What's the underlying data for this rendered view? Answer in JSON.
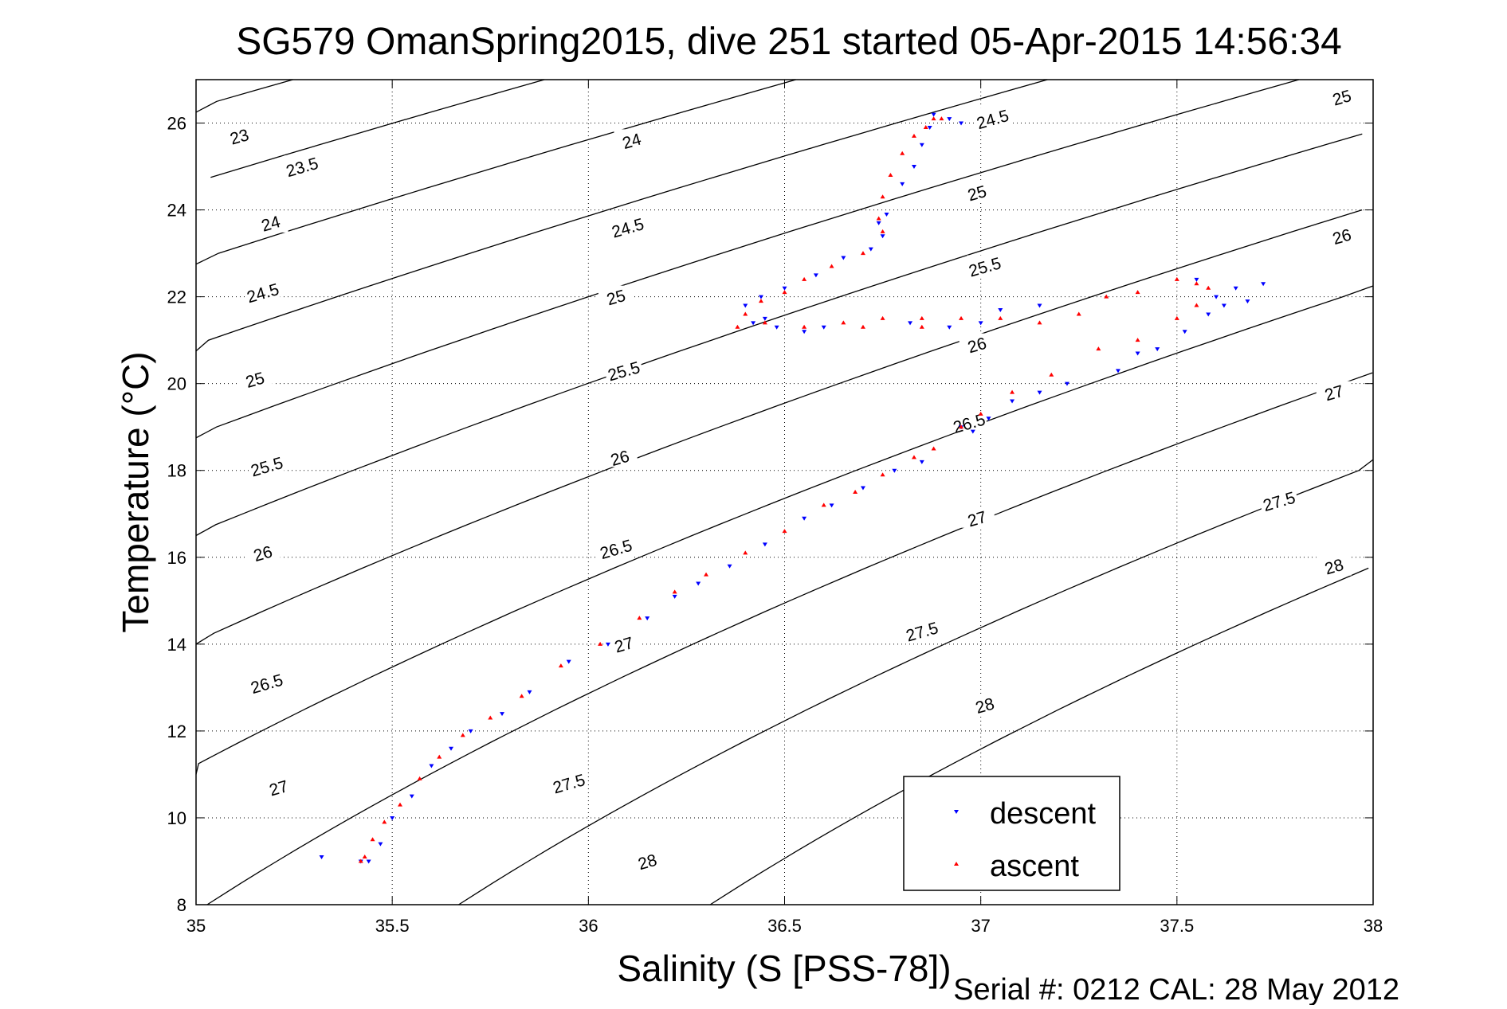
{
  "chart_data": {
    "type": "scatter",
    "title": "SG579 OmanSpring2015, dive 251 started 05-Apr-2015 14:56:34",
    "xlabel": "Salinity (S [PSS-78])",
    "ylabel": "Temperature (°C)",
    "footer": "Serial #: 0212  CAL: 28 May 2012",
    "xlim": [
      35,
      38
    ],
    "ylim": [
      8,
      27
    ],
    "xticks": [
      35,
      35.5,
      36,
      36.5,
      37,
      37.5,
      38
    ],
    "xtick_labels": [
      "35",
      "35.5",
      "36",
      "36.5",
      "37",
      "37.5",
      "38"
    ],
    "yticks": [
      8,
      10,
      12,
      14,
      16,
      18,
      20,
      22,
      24,
      26
    ],
    "ytick_labels": [
      "8",
      "10",
      "12",
      "14",
      "16",
      "18",
      "20",
      "22",
      "24",
      "26"
    ],
    "grid": "dotted",
    "legend_position": "bottom-right",
    "colors": {
      "descent": "#0000ff",
      "ascent": "#ff0000",
      "contour": "#000000"
    },
    "contours": {
      "note_type": "density (sigma-theta) isopycnals",
      "levels": [
        23,
        23.5,
        24,
        24.5,
        25,
        25.5,
        26,
        26.5,
        27,
        27.5,
        28
      ],
      "labels": [
        {
          "text": "23",
          "level": 23,
          "x": 35.11,
          "y": 25.7
        },
        {
          "text": "23.5",
          "level": 23.5,
          "x": 35.27,
          "y": 25.0
        },
        {
          "text": "24",
          "level": 24,
          "x": 35.19,
          "y": 23.7
        },
        {
          "text": "24.5",
          "level": 24.5,
          "x": 35.17,
          "y": 22.1
        },
        {
          "text": "25",
          "level": 25,
          "x": 35.15,
          "y": 20.1
        },
        {
          "text": "25.5",
          "level": 25.5,
          "x": 35.18,
          "y": 18.1
        },
        {
          "text": "26",
          "level": 26,
          "x": 35.17,
          "y": 16.1
        },
        {
          "text": "26.5",
          "level": 26.5,
          "x": 35.18,
          "y": 13.1
        },
        {
          "text": "27",
          "level": 27,
          "x": 35.21,
          "y": 10.7
        },
        {
          "text": "24",
          "level": 24,
          "x": 36.11,
          "y": 25.6
        },
        {
          "text": "24.5",
          "level": 24.5,
          "x": 36.1,
          "y": 23.6
        },
        {
          "text": "25",
          "level": 25,
          "x": 36.07,
          "y": 22.0
        },
        {
          "text": "25.5",
          "level": 25.5,
          "x": 36.09,
          "y": 20.3
        },
        {
          "text": "26",
          "level": 26,
          "x": 36.08,
          "y": 18.3
        },
        {
          "text": "26.5",
          "level": 26.5,
          "x": 36.07,
          "y": 16.2
        },
        {
          "text": "27",
          "level": 27,
          "x": 36.09,
          "y": 14.0
        },
        {
          "text": "27.5",
          "level": 27.5,
          "x": 35.95,
          "y": 10.8
        },
        {
          "text": "28",
          "level": 28,
          "x": 36.15,
          "y": 9.0
        },
        {
          "text": "24.5",
          "level": 24.5,
          "x": 37.03,
          "y": 26.1
        },
        {
          "text": "25",
          "level": 25,
          "x": 36.99,
          "y": 24.4
        },
        {
          "text": "25.5",
          "level": 25.5,
          "x": 37.01,
          "y": 22.7
        },
        {
          "text": "26",
          "level": 26,
          "x": 36.99,
          "y": 20.9
        },
        {
          "text": "26.5",
          "level": 26.5,
          "x": 36.97,
          "y": 19.1
        },
        {
          "text": "27",
          "level": 27,
          "x": 36.99,
          "y": 16.9
        },
        {
          "text": "27.5",
          "level": 27.5,
          "x": 36.85,
          "y": 14.3
        },
        {
          "text": "28",
          "level": 28,
          "x": 37.01,
          "y": 12.6
        },
        {
          "text": "25",
          "level": 25,
          "x": 37.92,
          "y": 26.6
        },
        {
          "text": "26",
          "level": 26,
          "x": 37.92,
          "y": 23.4
        },
        {
          "text": "27",
          "level": 27,
          "x": 37.9,
          "y": 19.8
        },
        {
          "text": "27.5",
          "level": 27.5,
          "x": 37.76,
          "y": 17.3
        },
        {
          "text": "28",
          "level": 28,
          "x": 37.9,
          "y": 15.8
        }
      ]
    },
    "series": [
      {
        "name": "descent",
        "marker": "down-triangle",
        "points": [
          [
            35.32,
            9.1
          ],
          [
            35.42,
            9.0
          ],
          [
            35.44,
            9.0
          ],
          [
            35.47,
            9.4
          ],
          [
            35.5,
            10.0
          ],
          [
            35.55,
            10.5
          ],
          [
            35.6,
            11.2
          ],
          [
            35.65,
            11.6
          ],
          [
            35.7,
            12.0
          ],
          [
            35.78,
            12.4
          ],
          [
            35.85,
            12.9
          ],
          [
            35.95,
            13.6
          ],
          [
            36.05,
            14.0
          ],
          [
            36.15,
            14.6
          ],
          [
            36.22,
            15.1
          ],
          [
            36.28,
            15.4
          ],
          [
            36.36,
            15.8
          ],
          [
            36.45,
            16.3
          ],
          [
            36.55,
            16.9
          ],
          [
            36.62,
            17.2
          ],
          [
            36.7,
            17.6
          ],
          [
            36.78,
            18.0
          ],
          [
            36.85,
            18.2
          ],
          [
            36.95,
            19.0
          ],
          [
            36.98,
            18.9
          ],
          [
            37.02,
            19.2
          ],
          [
            37.08,
            19.6
          ],
          [
            37.15,
            19.8
          ],
          [
            37.22,
            20.0
          ],
          [
            37.35,
            20.3
          ],
          [
            37.4,
            20.7
          ],
          [
            37.45,
            20.8
          ],
          [
            37.52,
            21.2
          ],
          [
            37.58,
            21.6
          ],
          [
            37.6,
            22.0
          ],
          [
            37.65,
            22.2
          ],
          [
            37.72,
            22.3
          ],
          [
            37.55,
            22.4
          ],
          [
            37.62,
            21.8
          ],
          [
            37.68,
            21.9
          ],
          [
            36.82,
            21.4
          ],
          [
            36.92,
            21.3
          ],
          [
            37.0,
            21.4
          ],
          [
            37.05,
            21.7
          ],
          [
            37.15,
            21.8
          ],
          [
            36.6,
            21.3
          ],
          [
            36.55,
            21.2
          ],
          [
            36.48,
            21.3
          ],
          [
            36.45,
            21.5
          ],
          [
            36.42,
            21.4
          ],
          [
            36.4,
            21.8
          ],
          [
            36.44,
            22.0
          ],
          [
            36.5,
            22.2
          ],
          [
            36.58,
            22.5
          ],
          [
            36.65,
            22.9
          ],
          [
            36.72,
            23.1
          ],
          [
            36.75,
            23.4
          ],
          [
            36.74,
            23.7
          ],
          [
            36.76,
            23.9
          ],
          [
            36.8,
            24.6
          ],
          [
            36.83,
            25.0
          ],
          [
            36.85,
            25.5
          ],
          [
            36.87,
            25.9
          ],
          [
            36.88,
            26.2
          ],
          [
            36.92,
            26.1
          ],
          [
            36.95,
            26.0
          ]
        ]
      },
      {
        "name": "ascent",
        "marker": "up-triangle",
        "points": [
          [
            35.42,
            9.0
          ],
          [
            35.43,
            9.1
          ],
          [
            35.45,
            9.5
          ],
          [
            35.48,
            9.9
          ],
          [
            35.52,
            10.3
          ],
          [
            35.57,
            10.9
          ],
          [
            35.62,
            11.4
          ],
          [
            35.68,
            11.9
          ],
          [
            35.75,
            12.3
          ],
          [
            35.83,
            12.8
          ],
          [
            35.93,
            13.5
          ],
          [
            36.03,
            14.0
          ],
          [
            36.13,
            14.6
          ],
          [
            36.22,
            15.2
          ],
          [
            36.3,
            15.6
          ],
          [
            36.4,
            16.1
          ],
          [
            36.5,
            16.6
          ],
          [
            36.6,
            17.2
          ],
          [
            36.68,
            17.5
          ],
          [
            36.75,
            17.9
          ],
          [
            36.83,
            18.3
          ],
          [
            36.88,
            18.5
          ],
          [
            36.95,
            19.0
          ],
          [
            37.0,
            19.3
          ],
          [
            37.08,
            19.8
          ],
          [
            37.18,
            20.2
          ],
          [
            37.3,
            20.8
          ],
          [
            37.4,
            21.0
          ],
          [
            37.5,
            21.5
          ],
          [
            37.55,
            21.8
          ],
          [
            37.5,
            22.4
          ],
          [
            37.55,
            22.3
          ],
          [
            37.58,
            22.2
          ],
          [
            37.4,
            22.1
          ],
          [
            37.32,
            22.0
          ],
          [
            37.25,
            21.6
          ],
          [
            37.15,
            21.4
          ],
          [
            37.05,
            21.5
          ],
          [
            36.95,
            21.5
          ],
          [
            36.85,
            21.3
          ],
          [
            36.75,
            21.5
          ],
          [
            36.7,
            21.3
          ],
          [
            36.65,
            21.4
          ],
          [
            36.55,
            21.3
          ],
          [
            36.45,
            21.4
          ],
          [
            36.38,
            21.3
          ],
          [
            36.4,
            21.6
          ],
          [
            36.44,
            21.9
          ],
          [
            36.5,
            22.1
          ],
          [
            36.55,
            22.4
          ],
          [
            36.62,
            22.7
          ],
          [
            36.7,
            23.0
          ],
          [
            36.75,
            23.5
          ],
          [
            36.74,
            23.8
          ],
          [
            36.75,
            24.3
          ],
          [
            36.77,
            24.8
          ],
          [
            36.8,
            25.3
          ],
          [
            36.83,
            25.7
          ],
          [
            36.86,
            25.9
          ],
          [
            36.88,
            26.1
          ],
          [
            36.9,
            26.1
          ],
          [
            36.85,
            21.5
          ]
        ]
      }
    ]
  }
}
